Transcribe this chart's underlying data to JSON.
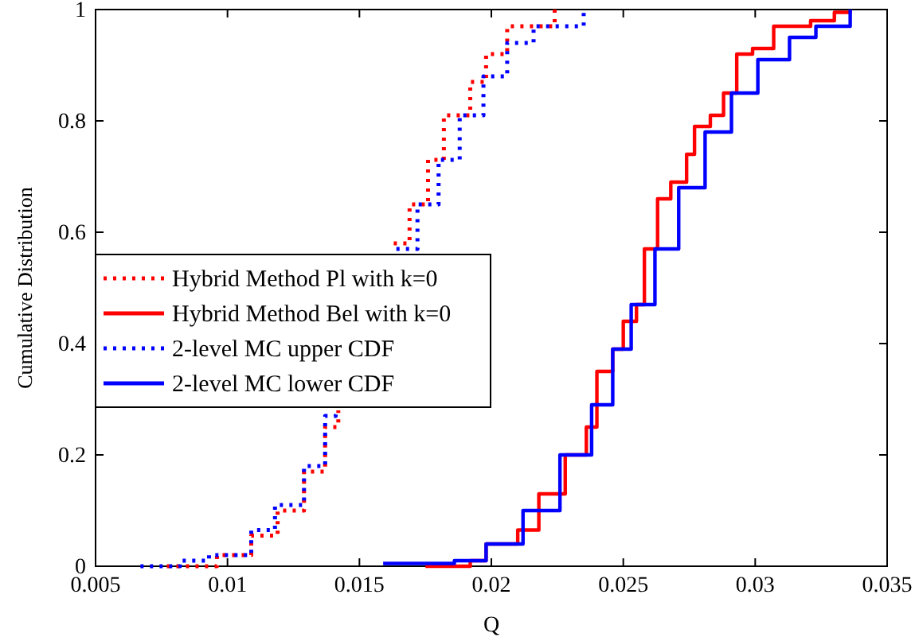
{
  "chart_data": {
    "type": "step",
    "xlabel": "Q",
    "ylabel": "Cumulative Distribution",
    "xlim": [
      0.005,
      0.035
    ],
    "ylim": [
      0,
      1
    ],
    "xticks": [
      0.005,
      0.01,
      0.015,
      0.02,
      0.025,
      0.03,
      0.035
    ],
    "yticks": [
      0,
      0.2,
      0.4,
      0.6,
      0.8,
      1
    ],
    "grid": false,
    "legend": "left",
    "series": [
      {
        "name": "Hybrid Method Pl with k=0",
        "color": "#ff0000",
        "line_style": "dotted",
        "x": [
          0.0077,
          0.0096,
          0.0109,
          0.0119,
          0.0129,
          0.0137,
          0.0142,
          0.0152,
          0.0163,
          0.0169,
          0.0176,
          0.0182,
          0.0192,
          0.0198,
          0.0206,
          0.0224
        ],
        "values": [
          0,
          0.02,
          0.055,
          0.1,
          0.17,
          0.25,
          0.28,
          null,
          0.58,
          0.65,
          0.73,
          0.81,
          0.87,
          0.92,
          0.97,
          1
        ]
      },
      {
        "name": "Hybrid Method Bel with k=0",
        "color": "#ff0000",
        "line_style": "solid",
        "x": [
          0.0175,
          0.0186,
          0.0192,
          0.0198,
          0.021,
          0.0218,
          0.0228,
          0.0236,
          0.024,
          0.0246,
          0.025,
          0.0255,
          0.0258,
          0.0263,
          0.0268,
          0.0274,
          0.0277,
          0.0283,
          0.0288,
          0.0293,
          0.0299,
          0.0307,
          0.0321,
          0.033,
          0.0336
        ],
        "values": [
          0,
          0,
          0.01,
          0.04,
          0.065,
          0.13,
          0.2,
          0.25,
          0.35,
          0.39,
          0.44,
          0.47,
          0.57,
          0.66,
          0.69,
          0.74,
          0.79,
          0.81,
          0.85,
          0.92,
          0.93,
          0.97,
          0.98,
          0.995,
          1
        ]
      },
      {
        "name": "2-level MC upper CDF",
        "color": "#0000ff",
        "line_style": "dotted",
        "x": [
          0.0067,
          0.0082,
          0.0093,
          0.0109,
          0.0118,
          0.0129,
          0.0137,
          0.0141,
          0.0152,
          0.0164,
          0.0172,
          0.018,
          0.0188,
          0.0197,
          0.0206,
          0.0216,
          0.0235
        ],
        "values": [
          0,
          0.01,
          0.02,
          0.065,
          0.11,
          0.18,
          0.27,
          0.28,
          null,
          0.57,
          0.65,
          0.73,
          0.81,
          0.88,
          0.94,
          0.97,
          1
        ]
      },
      {
        "name": "2-level MC lower CDF",
        "color": "#0000ff",
        "line_style": "solid",
        "x": [
          0.0159,
          0.0186,
          0.0198,
          0.0212,
          0.0226,
          0.0238,
          0.0246,
          0.0253,
          0.0262,
          0.0271,
          0.0281,
          0.0291,
          0.0301,
          0.0313,
          0.0323,
          0.0336
        ],
        "values": [
          0.005,
          0.01,
          0.04,
          0.1,
          0.2,
          0.29,
          0.39,
          0.47,
          0.57,
          0.68,
          0.78,
          0.85,
          0.91,
          0.95,
          0.97,
          1
        ]
      }
    ]
  }
}
